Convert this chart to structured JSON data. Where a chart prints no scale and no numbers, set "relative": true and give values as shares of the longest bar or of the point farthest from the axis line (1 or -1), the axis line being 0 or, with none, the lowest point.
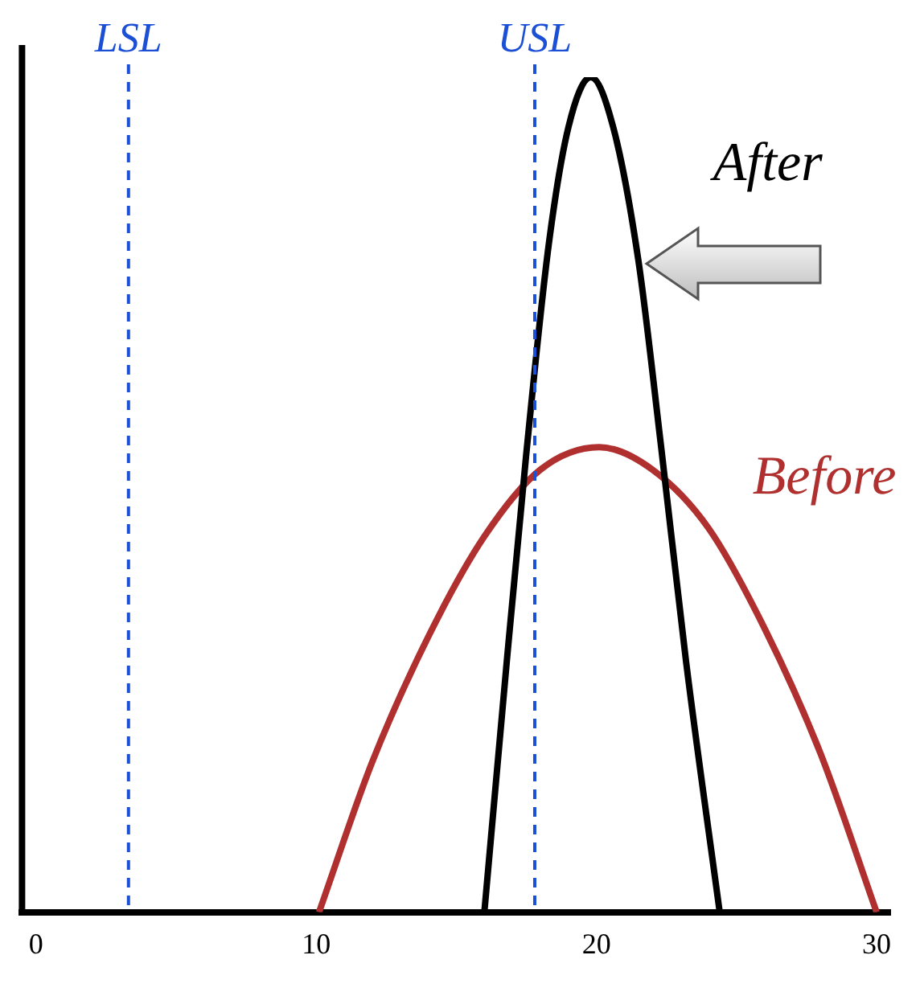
{
  "chart_data": {
    "type": "line",
    "relative": true,
    "xlim": [
      -0.5,
      30.5
    ],
    "xticks": [
      0,
      10,
      20,
      30
    ],
    "grid": false,
    "legend": false,
    "marker": "none",
    "line_style": "solid",
    "series": [
      {
        "name": "After",
        "color": "#000000",
        "x": [
          16,
          16.8,
          17.5,
          18.3,
          19,
          19.8,
          20.6,
          21.5,
          22.3,
          23.2,
          24.4
        ],
        "values": [
          0,
          0.3,
          0.55,
          0.8,
          0.94,
          1,
          0.94,
          0.78,
          0.56,
          0.3,
          0
        ]
      },
      {
        "name": "Before",
        "color": "#b03030",
        "x": [
          10.1,
          12,
          14,
          16,
          18,
          20.1,
          22,
          24,
          26,
          28,
          30
        ],
        "values": [
          0,
          0.18,
          0.33,
          0.45,
          0.53,
          0.557,
          0.53,
          0.46,
          0.34,
          0.19,
          0
        ]
      }
    ],
    "ref_lines": [
      {
        "axis": "x",
        "value": 3.3,
        "label": "LSL",
        "color": "#1a4fd6",
        "line_style": "dashed"
      },
      {
        "axis": "x",
        "value": 17.8,
        "label": "USL",
        "color": "#1a4fd6",
        "line_style": "dashed"
      }
    ]
  }
}
